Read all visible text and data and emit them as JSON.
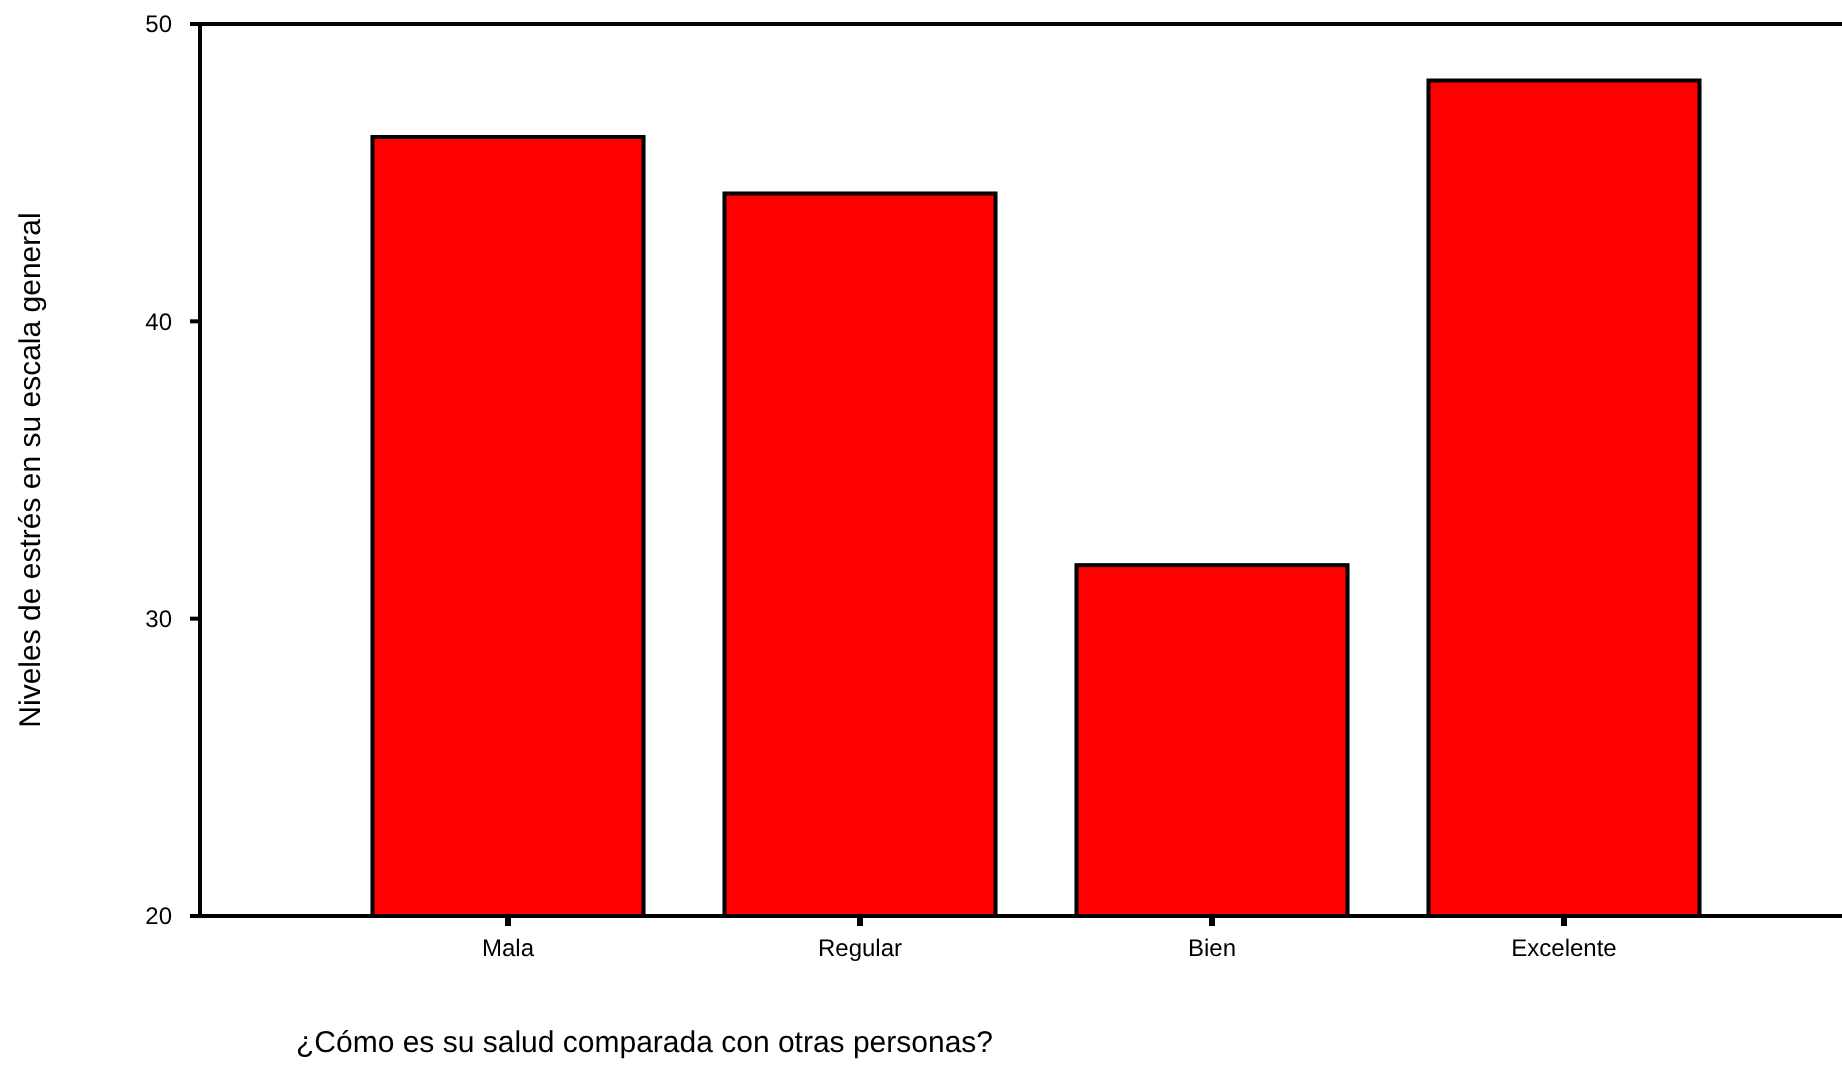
{
  "chart_data": {
    "type": "bar",
    "categories": [
      "Mala",
      "Regular",
      "Bien",
      "Excelente"
    ],
    "values": [
      46.2,
      44.3,
      31.8,
      48.1
    ],
    "color": "#ff0000",
    "ylim": [
      20,
      50
    ],
    "yticks": [
      20,
      30,
      40,
      50
    ],
    "grid": false,
    "xlabel": "¿Cómo es su salud comparada con otras personas?",
    "ylabel": "Niveles de estrés en su escala general"
  }
}
